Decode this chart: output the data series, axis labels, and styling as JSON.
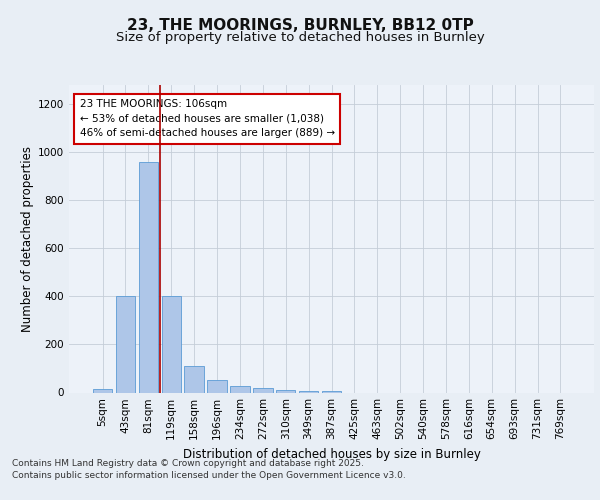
{
  "title": "23, THE MOORINGS, BURNLEY, BB12 0TP",
  "subtitle": "Size of property relative to detached houses in Burnley",
  "xlabel": "Distribution of detached houses by size in Burnley",
  "ylabel": "Number of detached properties",
  "footnote1": "Contains HM Land Registry data © Crown copyright and database right 2025.",
  "footnote2": "Contains public sector information licensed under the Open Government Licence v3.0.",
  "annotation_title": "23 THE MOORINGS: 106sqm",
  "annotation_line1": "← 53% of detached houses are smaller (1,038)",
  "annotation_line2": "46% of semi-detached houses are larger (889) →",
  "bar_labels": [
    "5sqm",
    "43sqm",
    "81sqm",
    "119sqm",
    "158sqm",
    "196sqm",
    "234sqm",
    "272sqm",
    "310sqm",
    "349sqm",
    "387sqm",
    "425sqm",
    "463sqm",
    "502sqm",
    "540sqm",
    "578sqm",
    "616sqm",
    "654sqm",
    "693sqm",
    "731sqm",
    "769sqm"
  ],
  "bar_values": [
    15,
    400,
    960,
    400,
    110,
    50,
    25,
    20,
    12,
    5,
    5,
    0,
    0,
    0,
    0,
    0,
    0,
    0,
    0,
    0,
    0
  ],
  "bar_color": "#aec6e8",
  "bar_edge_color": "#5b9bd5",
  "vline_color": "#aa0000",
  "vline_x": 2.5,
  "ylim": [
    0,
    1280
  ],
  "yticks": [
    0,
    200,
    400,
    600,
    800,
    1000,
    1200
  ],
  "bg_color": "#e8eef5",
  "plot_bg_color": "#edf2f9",
  "grid_color": "#c5cdd8",
  "title_fontsize": 11,
  "subtitle_fontsize": 9.5,
  "axis_label_fontsize": 8.5,
  "tick_fontsize": 7.5,
  "annotation_fontsize": 7.5,
  "footnote_fontsize": 6.5
}
